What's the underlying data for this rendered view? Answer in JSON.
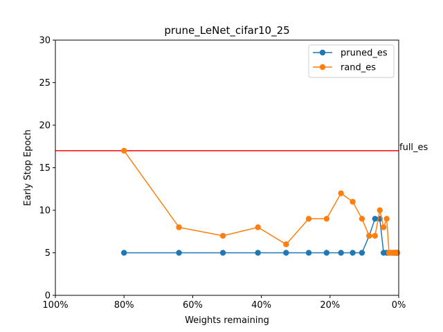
{
  "chart_data": {
    "type": "line",
    "title": "prune_LeNet_cifar10_25",
    "xlabel": "Weights remaining",
    "ylabel": "Early Stop Epoch",
    "xlim": [
      100,
      0
    ],
    "ylim": [
      0,
      30
    ],
    "x_ticks": [
      100,
      80,
      60,
      40,
      20,
      0
    ],
    "x_tick_labels": [
      "100%",
      "80%",
      "60%",
      "40%",
      "20%",
      "0%"
    ],
    "y_ticks": [
      0,
      5,
      10,
      15,
      20,
      25,
      30
    ],
    "y_tick_labels": [
      "0",
      "5",
      "10",
      "15",
      "20",
      "25",
      "30"
    ],
    "grid": false,
    "legend_position": "top-right",
    "x": [
      80,
      64,
      51.2,
      41,
      32.8,
      26.2,
      21,
      16.8,
      13.4,
      10.7,
      8.6,
      6.9,
      5.5,
      4.4,
      3.5,
      2.8,
      2.3,
      1.8,
      1.4,
      1.2,
      0.9,
      0.7,
      0.6,
      0.5,
      0.4
    ],
    "series": [
      {
        "name": "pruned_es",
        "color": "#1f77b4",
        "values": [
          5,
          5,
          5,
          5,
          5,
          5,
          5,
          5,
          5,
          5,
          7,
          9,
          9,
          5,
          5,
          5,
          5,
          5,
          5,
          5,
          5,
          5,
          5,
          5,
          5
        ]
      },
      {
        "name": "rand_es",
        "color": "#ff7f0e",
        "values": [
          17,
          8,
          7,
          8,
          6,
          9,
          9,
          12,
          11,
          9,
          7,
          7,
          10,
          8,
          9,
          5,
          5,
          5,
          5,
          5,
          5,
          5,
          5,
          5,
          5
        ]
      }
    ],
    "reference_lines": [
      {
        "label": "full_es",
        "y": 17,
        "color": "#ff0000"
      }
    ]
  }
}
